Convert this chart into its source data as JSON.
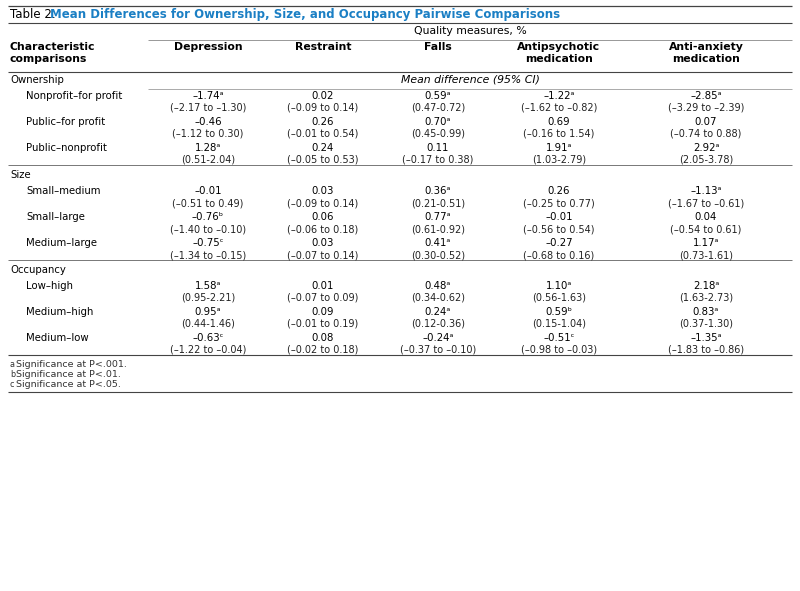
{
  "title_prefix": "Table 2. ",
  "title_main": "Mean Differences for Ownership, Size, and Occupancy Pairwise Comparisons",
  "quality_header": "Quality measures, %",
  "mean_diff_header": "Mean difference (95% CI)",
  "columns": [
    "Depression",
    "Restraint",
    "Falls",
    "Antipsychotic\nmedication",
    "Anti-anxiety\nmedication"
  ],
  "sections": [
    {
      "name": "Ownership",
      "rows": [
        {
          "label": "Nonprofit–for profit",
          "values": [
            [
              "–1.74ᵃ",
              "(–2.17 to –1.30)"
            ],
            [
              "0.02",
              "(–0.09 to 0.14)"
            ],
            [
              "0.59ᵃ",
              "(0.47-0.72)"
            ],
            [
              "–1.22ᵃ",
              "(–1.62 to –0.82)"
            ],
            [
              "–2.85ᵃ",
              "(–3.29 to –2.39)"
            ]
          ]
        },
        {
          "label": "Public–for profit",
          "values": [
            [
              "–0.46",
              "(–1.12 to 0.30)"
            ],
            [
              "0.26",
              "(–0.01 to 0.54)"
            ],
            [
              "0.70ᵃ",
              "(0.45-0.99)"
            ],
            [
              "0.69",
              "(–0.16 to 1.54)"
            ],
            [
              "0.07",
              "(–0.74 to 0.88)"
            ]
          ]
        },
        {
          "label": "Public–nonprofit",
          "values": [
            [
              "1.28ᵃ",
              "(0.51-2.04)"
            ],
            [
              "0.24",
              "(–0.05 to 0.53)"
            ],
            [
              "0.11",
              "(–0.17 to 0.38)"
            ],
            [
              "1.91ᵃ",
              "(1.03-2.79)"
            ],
            [
              "2.92ᵃ",
              "(2.05-3.78)"
            ]
          ]
        }
      ]
    },
    {
      "name": "Size",
      "rows": [
        {
          "label": "Small–medium",
          "values": [
            [
              "–0.01",
              "(–0.51 to 0.49)"
            ],
            [
              "0.03",
              "(–0.09 to 0.14)"
            ],
            [
              "0.36ᵃ",
              "(0.21-0.51)"
            ],
            [
              "0.26",
              "(–0.25 to 0.77)"
            ],
            [
              "–1.13ᵃ",
              "(–1.67 to –0.61)"
            ]
          ]
        },
        {
          "label": "Small–large",
          "values": [
            [
              "–0.76ᵇ",
              "(–1.40 to –0.10)"
            ],
            [
              "0.06",
              "(–0.06 to 0.18)"
            ],
            [
              "0.77ᵃ",
              "(0.61-0.92)"
            ],
            [
              "–0.01",
              "(–0.56 to 0.54)"
            ],
            [
              "0.04",
              "(–0.54 to 0.61)"
            ]
          ]
        },
        {
          "label": "Medium–large",
          "values": [
            [
              "–0.75ᶜ",
              "(–1.34 to –0.15)"
            ],
            [
              "0.03",
              "(–0.07 to 0.14)"
            ],
            [
              "0.41ᵃ",
              "(0.30-0.52)"
            ],
            [
              "–0.27",
              "(–0.68 to 0.16)"
            ],
            [
              "1.17ᵃ",
              "(0.73-1.61)"
            ]
          ]
        }
      ]
    },
    {
      "name": "Occupancy",
      "rows": [
        {
          "label": "Low–high",
          "values": [
            [
              "1.58ᵃ",
              "(0.95-2.21)"
            ],
            [
              "0.01",
              "(–0.07 to 0.09)"
            ],
            [
              "0.48ᵃ",
              "(0.34-0.62)"
            ],
            [
              "1.10ᵃ",
              "(0.56-1.63)"
            ],
            [
              "2.18ᵃ",
              "(1.63-2.73)"
            ]
          ]
        },
        {
          "label": "Medium–high",
          "values": [
            [
              "0.95ᵃ",
              "(0.44-1.46)"
            ],
            [
              "0.09",
              "(–0.01 to 0.19)"
            ],
            [
              "0.24ᵃ",
              "(0.12-0.36)"
            ],
            [
              "0.59ᵇ",
              "(0.15-1.04)"
            ],
            [
              "0.83ᵃ",
              "(0.37-1.30)"
            ]
          ]
        },
        {
          "label": "Medium–low",
          "values": [
            [
              "–0.63ᶜ",
              "(–1.22 to –0.04)"
            ],
            [
              "0.08",
              "(–0.02 to 0.18)"
            ],
            [
              "–0.24ᵃ",
              "(–0.37 to –0.10)"
            ],
            [
              "–0.51ᶜ",
              "(–0.98 to –0.03)"
            ],
            [
              "–1.35ᵃ",
              "(–1.83 to –0.86)"
            ]
          ]
        }
      ]
    }
  ],
  "footnotes": [
    [
      "a",
      "Significance at ",
      "P",
      "<.001."
    ],
    [
      "b",
      "Significance at ",
      "P",
      "<.01."
    ],
    [
      "c",
      "Significance at ",
      "P",
      "<.05."
    ]
  ],
  "title_color": "#1b7fc4",
  "bg_color": "#ffffff",
  "fig_width": 8.0,
  "fig_height": 5.91,
  "dpi": 100
}
